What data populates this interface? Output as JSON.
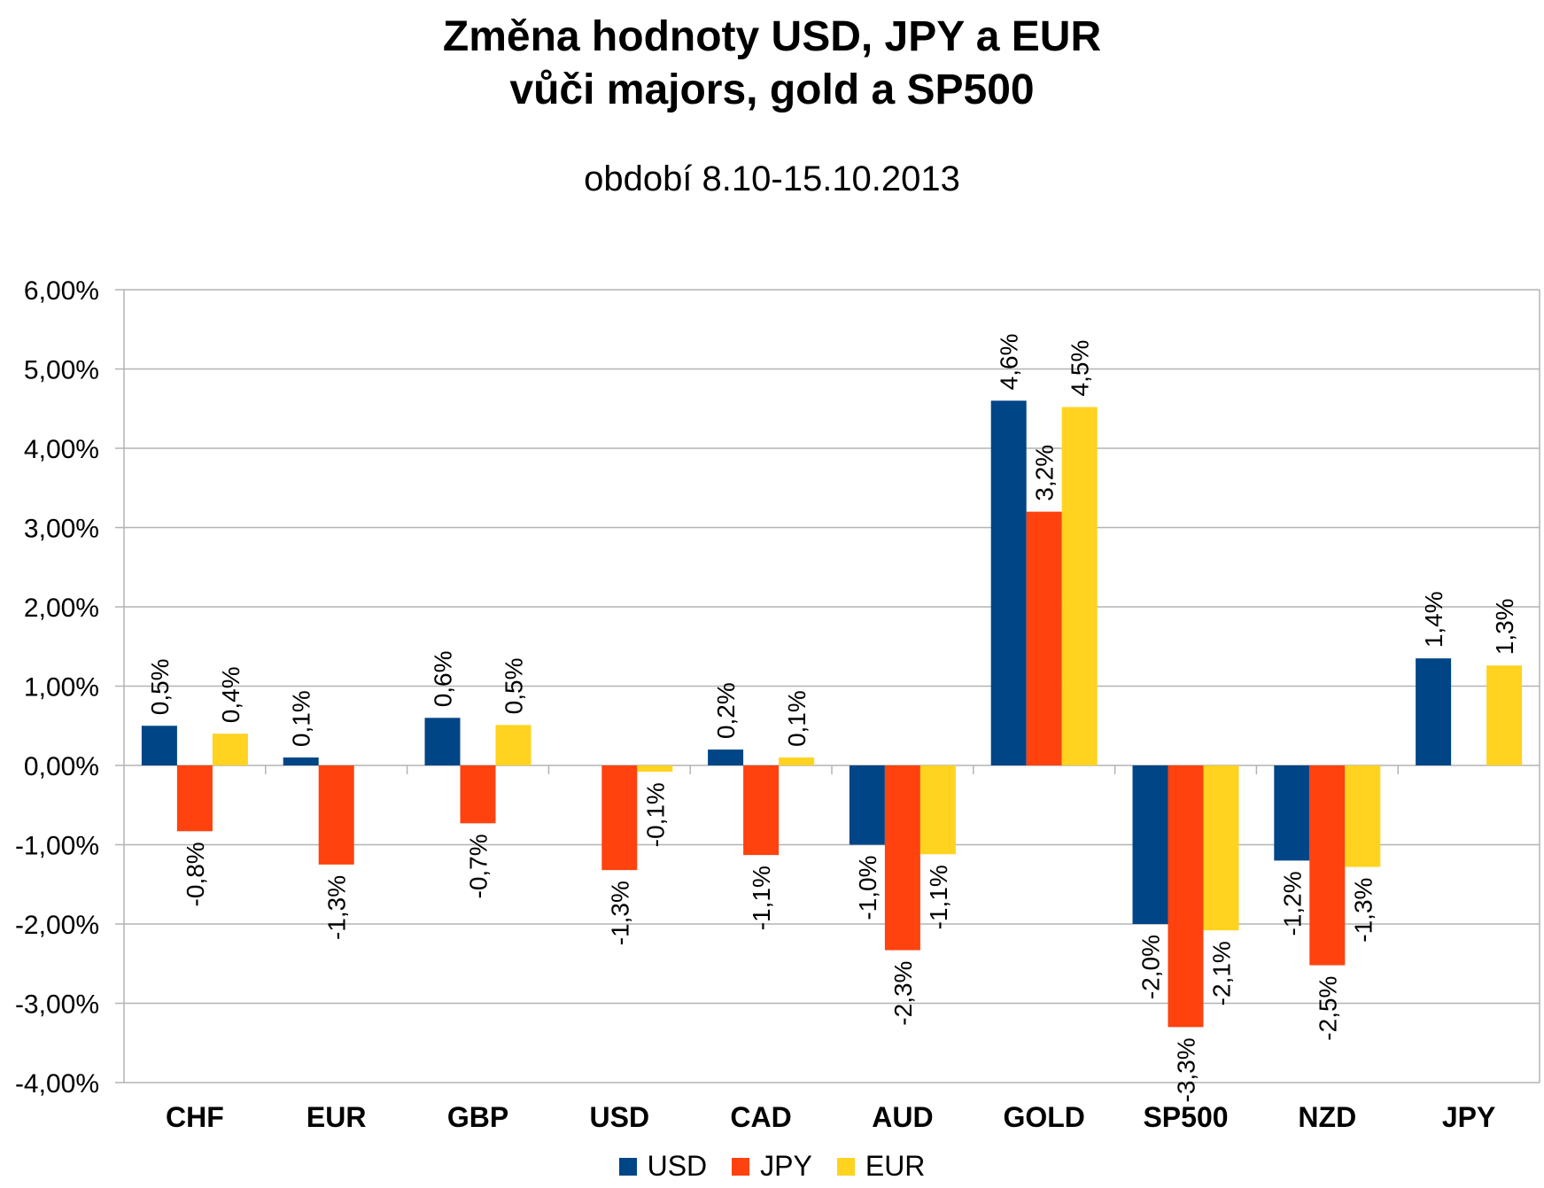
{
  "chart_data": {
    "type": "bar",
    "title_lines": [
      "Změna hodnoty USD, JPY a EUR",
      "vůči majors, gold a SP500"
    ],
    "subtitle": "období 8.10-15.10.2013",
    "categories": [
      "CHF",
      "EUR",
      "GBP",
      "USD",
      "CAD",
      "AUD",
      "GOLD",
      "SP500",
      "NZD",
      "JPY"
    ],
    "series": [
      {
        "name": "USD",
        "color": "#004586",
        "values": [
          0.5,
          0.1,
          0.6,
          null,
          0.2,
          -1.0,
          4.6,
          -2.0,
          -1.2,
          1.35
        ],
        "labels": [
          "0,5%",
          "0,1%",
          "0,6%",
          "",
          "0,2%",
          "-1,0%",
          "4,6%",
          "-2,0%",
          "-1,2%",
          "1,4%"
        ]
      },
      {
        "name": "JPY",
        "color": "#ff420e",
        "values": [
          -0.83,
          -1.25,
          -0.73,
          -1.32,
          -1.13,
          -2.33,
          3.2,
          -3.3,
          -2.52,
          null
        ],
        "labels": [
          "-0,8%",
          "-1,3%",
          "-0,7%",
          "-1,3%",
          "-1,1%",
          "-2,3%",
          "3,2%",
          "-3,3%",
          "-2,5%",
          ""
        ]
      },
      {
        "name": "EUR",
        "color": "#ffd320",
        "values": [
          0.4,
          null,
          0.51,
          -0.08,
          0.1,
          -1.12,
          4.52,
          -2.08,
          -1.28,
          1.26
        ],
        "labels": [
          "0,4%",
          "",
          "0,5%",
          "-0,1%",
          "0,1%",
          "-1,1%",
          "4,5%",
          "-2,1%",
          "-1,3%",
          "1,3%"
        ]
      }
    ],
    "ylim": [
      -4,
      6
    ],
    "yticks": [
      6,
      5,
      4,
      3,
      2,
      1,
      0,
      -1,
      -2,
      -3,
      -4
    ],
    "ytick_labels": [
      "6,00%",
      "5,00%",
      "4,00%",
      "3,00%",
      "2,00%",
      "1,00%",
      "0,00%",
      "-1,00%",
      "-2,00%",
      "-3,00%",
      "-4,00%"
    ],
    "grid": true,
    "legend_position": "bottom"
  }
}
